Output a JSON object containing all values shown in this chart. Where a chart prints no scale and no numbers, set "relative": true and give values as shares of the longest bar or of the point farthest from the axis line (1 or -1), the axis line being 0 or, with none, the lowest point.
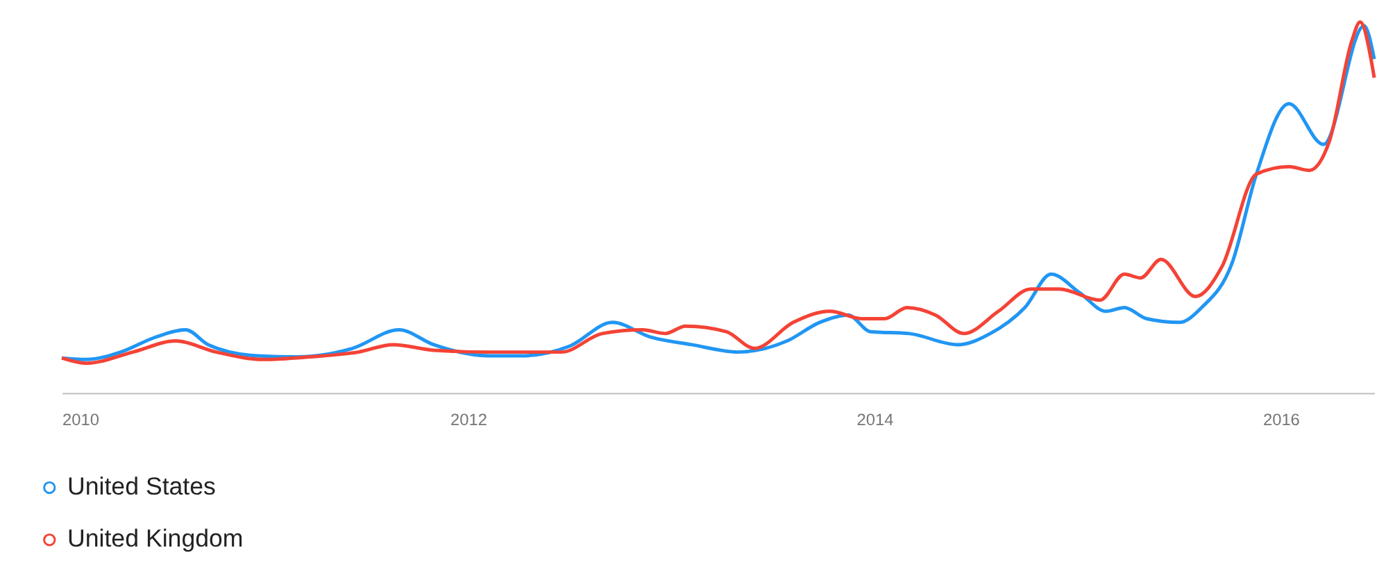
{
  "chart_data": {
    "type": "line",
    "relative": true,
    "x": [
      2010.0,
      2010.12,
      2010.29,
      2010.46,
      2010.61,
      2010.72,
      2010.96,
      2011.16,
      2011.43,
      2011.66,
      2011.83,
      2012.1,
      2012.26,
      2012.5,
      2012.71,
      2012.9,
      2013.1,
      2013.33,
      2013.57,
      2013.73,
      2013.87,
      2013.98,
      2014.17,
      2014.41,
      2014.57,
      2014.74,
      2014.87,
      2015.01,
      2015.14,
      2015.23,
      2015.34,
      2015.5,
      2015.61,
      2015.76,
      2015.88,
      2016.04,
      2016.21,
      2016.41,
      2016.46
    ],
    "xlim": [
      2010,
      2016.46
    ],
    "xticks": [
      2010,
      2012,
      2014,
      2016
    ],
    "grid": false,
    "legend": "bottom left",
    "marker": "none",
    "line_style": "solid",
    "series": [
      {
        "name": "United States",
        "color": "#2196f3",
        "values": [
          0.094,
          0.09,
          0.11,
          0.15,
          0.17,
          0.13,
          0.1,
          0.097,
          0.12,
          0.17,
          0.13,
          0.1,
          0.1,
          0.126,
          0.19,
          0.15,
          0.13,
          0.11,
          0.14,
          0.19,
          0.21,
          0.165,
          0.16,
          0.13,
          0.16,
          0.23,
          0.32,
          0.27,
          0.22,
          0.23,
          0.2,
          0.19,
          0.23,
          0.35,
          0.59,
          0.78,
          0.67,
          0.99,
          0.9
        ]
      },
      {
        "name": "United Kingdom",
        "color": "#f44336",
        "x": [
          2010.0,
          2010.12,
          2010.35,
          2010.56,
          2010.76,
          2010.99,
          2011.22,
          2011.46,
          2011.63,
          2011.83,
          2012.1,
          2012.3,
          2012.46,
          2012.66,
          2012.86,
          2012.97,
          2013.07,
          2013.27,
          2013.41,
          2013.6,
          2013.78,
          2013.94,
          2014.05,
          2014.16,
          2014.3,
          2014.44,
          2014.61,
          2014.77,
          2014.91,
          2015.11,
          2015.23,
          2015.31,
          2015.41,
          2015.58,
          2015.71,
          2015.88,
          2016.04,
          2016.14,
          2016.24,
          2016.35,
          2016.39,
          2016.46
        ],
        "values": [
          0.094,
          0.08,
          0.11,
          0.14,
          0.11,
          0.09,
          0.097,
          0.11,
          0.13,
          0.115,
          0.11,
          0.11,
          0.11,
          0.16,
          0.17,
          0.16,
          0.18,
          0.165,
          0.12,
          0.19,
          0.22,
          0.2,
          0.2,
          0.23,
          0.21,
          0.16,
          0.22,
          0.28,
          0.28,
          0.25,
          0.32,
          0.31,
          0.36,
          0.26,
          0.34,
          0.59,
          0.61,
          0.6,
          0.68,
          0.95,
          1.0,
          0.85
        ]
      }
    ]
  }
}
